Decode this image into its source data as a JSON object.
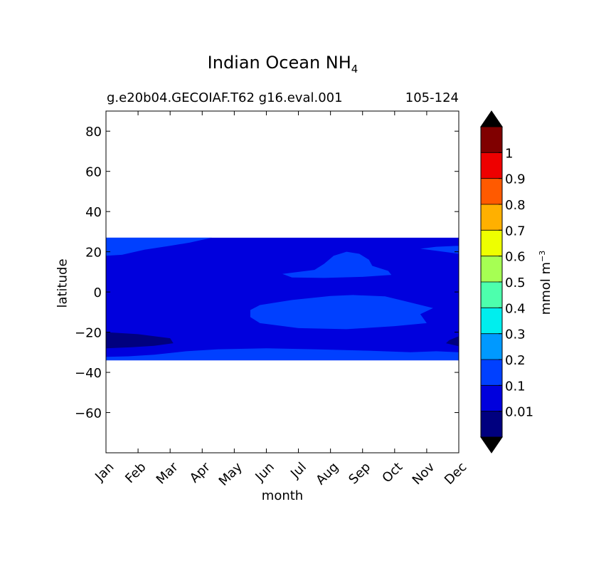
{
  "chart_data": {
    "type": "heatmap",
    "title": "Indian Ocean NH",
    "title_subscript": "4",
    "subtitle_left": "g.e20b04.GECOIAF.T62 g16.eval.001",
    "subtitle_right": "105-124",
    "xlabel": "month",
    "ylabel": "latitude",
    "x_categories": [
      "Jan",
      "Feb",
      "Mar",
      "Apr",
      "May",
      "Jun",
      "Jul",
      "Aug",
      "Sep",
      "Oct",
      "Nov",
      "Dec"
    ],
    "ylim": [
      -80,
      90
    ],
    "yticks": [
      80,
      60,
      40,
      20,
      0,
      -20,
      -40,
      -60
    ],
    "ytick_labels": [
      "80",
      "60",
      "40",
      "20",
      "0",
      "−20",
      "−40",
      "−60"
    ],
    "data_lat_range": [
      -34,
      27
    ],
    "colorbar": {
      "label": "mmol m",
      "label_superscript": "−3",
      "levels": [
        0,
        0.01,
        0.1,
        0.2,
        0.3,
        0.4,
        0.5,
        0.6,
        0.7,
        0.8,
        0.9,
        1,
        1.1
      ],
      "tick_values": [
        0.01,
        0.1,
        0.2,
        0.3,
        0.4,
        0.5,
        0.6,
        0.7,
        0.8,
        0.9,
        1
      ],
      "tick_labels": [
        "0.01",
        "0.1",
        "0.2",
        "0.3",
        "0.4",
        "0.5",
        "0.6",
        "0.7",
        "0.8",
        "0.9",
        "1"
      ],
      "colors": [
        "#00007f",
        "#0000dd",
        "#0040ff",
        "#0099ff",
        "#00eeee",
        "#4dffad",
        "#a6ff53",
        "#eeff00",
        "#ffb000",
        "#ff5a00",
        "#ee0000",
        "#800000"
      ],
      "under_color": "#000000",
      "over_color": "#000000",
      "extend": "both"
    },
    "regions": [
      {
        "level": "0.1-0.2",
        "description": "background band",
        "color": "#0000dd"
      },
      {
        "level": "0.2-0.3",
        "description": "northern band 18N-27N Jan-Apr and Nov-Dec",
        "color": "#0040ff"
      },
      {
        "level": "0.2-0.3",
        "description": "southern band 28S-34S",
        "color": "#0040ff"
      },
      {
        "level": "0.2-0.3",
        "description": "central patch 2S-18S Jun-Oct",
        "color": "#0040ff"
      },
      {
        "level": "0.2-0.3",
        "description": "patch 7N-20N Jul-Sep",
        "color": "#0040ff"
      },
      {
        "level": "0.01-0.1",
        "description": "low patch 20S-28S Jan-Mar and Dec",
        "color": "#00007f"
      }
    ]
  }
}
